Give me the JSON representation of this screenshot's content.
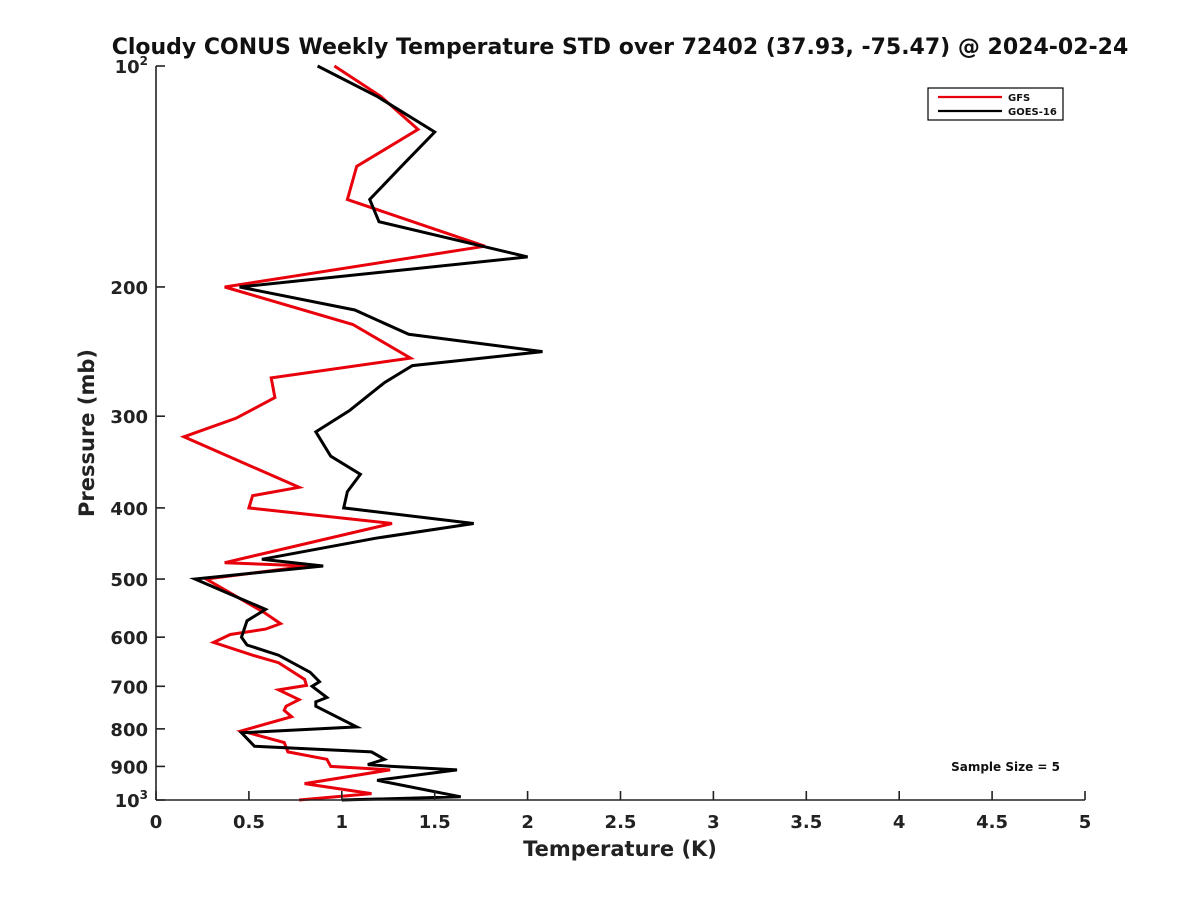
{
  "chart_data": {
    "type": "line",
    "title": "Cloudy CONUS Weekly Temperature STD over 72402 (37.93, -75.47) @ 2024-02-24",
    "xlabel": "Temperature (K)",
    "ylabel": "Pressure (mb)",
    "xlim": [
      0,
      5
    ],
    "ylim": [
      100,
      1000
    ],
    "y_scale": "log",
    "y_reversed": true,
    "grid": false,
    "legend_position": "top-right",
    "x_ticks": [
      {
        "value": 0,
        "label": "0"
      },
      {
        "value": 0.5,
        "label": "0.5"
      },
      {
        "value": 1,
        "label": "1"
      },
      {
        "value": 1.5,
        "label": "1.5"
      },
      {
        "value": 2,
        "label": "2"
      },
      {
        "value": 2.5,
        "label": "2.5"
      },
      {
        "value": 3,
        "label": "3"
      },
      {
        "value": 3.5,
        "label": "3.5"
      },
      {
        "value": 4,
        "label": "4"
      },
      {
        "value": 4.5,
        "label": "4.5"
      },
      {
        "value": 5,
        "label": "5"
      }
    ],
    "y_ticks": [
      {
        "value": 100,
        "label": "10",
        "sup": "2"
      },
      {
        "value": 200,
        "label": "200",
        "sup": ""
      },
      {
        "value": 300,
        "label": "300",
        "sup": ""
      },
      {
        "value": 400,
        "label": "400",
        "sup": ""
      },
      {
        "value": 500,
        "label": "500",
        "sup": ""
      },
      {
        "value": 600,
        "label": "600",
        "sup": ""
      },
      {
        "value": 700,
        "label": "700",
        "sup": ""
      },
      {
        "value": 800,
        "label": "800",
        "sup": ""
      },
      {
        "value": 900,
        "label": "900",
        "sup": ""
      },
      {
        "value": 1000,
        "label": "10",
        "sup": "3"
      }
    ],
    "series": [
      {
        "name": "GFS",
        "color": "#e8000b",
        "points": [
          [
            0.96,
            100
          ],
          [
            1.21,
            110
          ],
          [
            1.41,
            122
          ],
          [
            1.08,
            137
          ],
          [
            1.03,
            152
          ],
          [
            1.77,
            176
          ],
          [
            0.37,
            200
          ],
          [
            1.06,
            225
          ],
          [
            1.37,
            250
          ],
          [
            0.62,
            266
          ],
          [
            0.64,
            283
          ],
          [
            0.43,
            302
          ],
          [
            0.15,
            320
          ],
          [
            0.77,
            375
          ],
          [
            0.52,
            385
          ],
          [
            0.5,
            400
          ],
          [
            1.27,
            420
          ],
          [
            0.37,
            475
          ],
          [
            0.82,
            480
          ],
          [
            0.27,
            500
          ],
          [
            0.58,
            555
          ],
          [
            0.67,
            575
          ],
          [
            0.59,
            585
          ],
          [
            0.4,
            595
          ],
          [
            0.31,
            610
          ],
          [
            0.52,
            635
          ],
          [
            0.66,
            650
          ],
          [
            0.8,
            685
          ],
          [
            0.81,
            698
          ],
          [
            0.66,
            708
          ],
          [
            0.77,
            730
          ],
          [
            0.7,
            745
          ],
          [
            0.69,
            755
          ],
          [
            0.73,
            770
          ],
          [
            0.46,
            805
          ],
          [
            0.69,
            835
          ],
          [
            0.71,
            860
          ],
          [
            0.92,
            880
          ],
          [
            0.94,
            900
          ],
          [
            1.26,
            910
          ],
          [
            0.8,
            950
          ],
          [
            1.16,
            980
          ],
          [
            0.77,
            1000
          ]
        ]
      },
      {
        "name": "GOES-16",
        "color": "#000000",
        "points": [
          [
            0.87,
            100
          ],
          [
            1.19,
            110
          ],
          [
            1.5,
            123
          ],
          [
            1.32,
            137
          ],
          [
            1.15,
            152
          ],
          [
            1.2,
            163
          ],
          [
            2.0,
            182
          ],
          [
            0.45,
            200
          ],
          [
            1.07,
            215
          ],
          [
            1.36,
            232
          ],
          [
            2.08,
            245
          ],
          [
            1.38,
            256
          ],
          [
            1.23,
            270
          ],
          [
            1.04,
            295
          ],
          [
            0.86,
            315
          ],
          [
            0.94,
            340
          ],
          [
            1.1,
            360
          ],
          [
            1.03,
            380
          ],
          [
            1.01,
            400
          ],
          [
            1.71,
            420
          ],
          [
            1.18,
            440
          ],
          [
            0.57,
            470
          ],
          [
            0.9,
            480
          ],
          [
            0.21,
            500
          ],
          [
            0.59,
            550
          ],
          [
            0.49,
            570
          ],
          [
            0.46,
            600
          ],
          [
            0.49,
            615
          ],
          [
            0.66,
            635
          ],
          [
            0.83,
            670
          ],
          [
            0.88,
            690
          ],
          [
            0.84,
            700
          ],
          [
            0.92,
            725
          ],
          [
            0.86,
            735
          ],
          [
            0.86,
            745
          ],
          [
            1.08,
            795
          ],
          [
            0.46,
            810
          ],
          [
            0.53,
            845
          ],
          [
            1.16,
            860
          ],
          [
            1.23,
            880
          ],
          [
            1.14,
            895
          ],
          [
            1.27,
            900
          ],
          [
            1.62,
            910
          ],
          [
            1.19,
            940
          ],
          [
            1.64,
            990
          ],
          [
            1.0,
            1000
          ]
        ]
      }
    ],
    "legend": [
      {
        "label": "GFS",
        "color": "#e8000b"
      },
      {
        "label": "GOES-16",
        "color": "#000000"
      }
    ],
    "annotations": [
      {
        "text": "Sample Size = 5"
      }
    ]
  }
}
